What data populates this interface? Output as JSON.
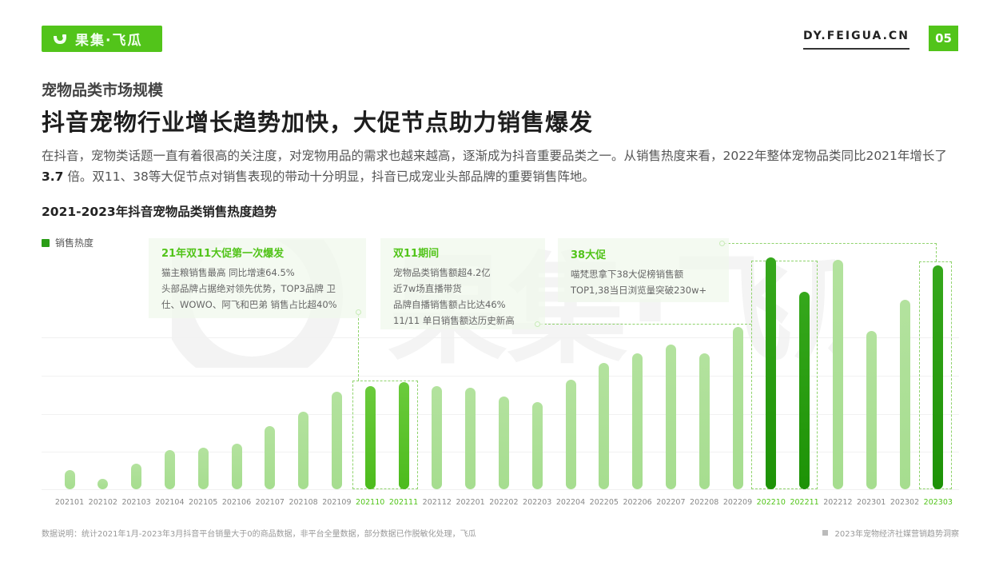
{
  "header": {
    "logo_text": "果集·飞瓜",
    "logo_icon": "guoji-logo-icon",
    "site_url": "DY.FEIGUA.CN",
    "page_number": "05",
    "brand_color": "#52c41a"
  },
  "section_label": "宠物品类市场规模",
  "headline": "抖音宠物行业增长趋势加快，大促节点助力销售爆发",
  "intro": {
    "part1": "在抖音，宠物类话题一直有着很高的关注度，对宠物用品的需求也越来越高，逐渐成为抖音重要品类之一。从销售热度来看，2022年整体宠物品类同比2021年增长了 ",
    "highlight": "3.7",
    "part2": " 倍。双11、38等大促节点对销售表现的带动十分明显，抖音已成宠业头部品牌的重要销售阵地。"
  },
  "chart_title": "2021-2023年抖音宠物品类销售热度趋势",
  "legend": {
    "label": "销售热度",
    "color": "#2a9d16"
  },
  "watermark": "果集·飞瓜",
  "annotations": [
    {
      "title": "21年双11大促第一次爆发",
      "lines": [
        "猫主粮销售最高 同比增速64.5%",
        "头部品牌占据绝对领先优势，TOP3品牌 卫",
        "仕、WOWO、阿飞和巴弟 销售占比超40%"
      ]
    },
    {
      "title": "双11期间",
      "lines": [
        "宠物品类销售额超4.2亿",
        "近7w场直播带货",
        "品牌自播销售额占比达46%",
        "11/11 单日销售额达历史新高"
      ]
    },
    {
      "title": "38大促",
      "lines": [
        "喵梵思拿下38大促榜销售额",
        "TOP1,38当日浏览量突破230w+"
      ]
    }
  ],
  "chart_data": {
    "type": "bar",
    "title": "2021-2023年抖音宠物品类销售热度趋势",
    "xlabel": "",
    "ylabel": "销售热度 (relative, axis unlabeled)",
    "legend": [
      "销售热度"
    ],
    "legend_position": "top-left",
    "grid": true,
    "ylim": [
      0,
      290
    ],
    "categories": [
      "202101",
      "202102",
      "202103",
      "202104",
      "202105",
      "202106",
      "202107",
      "202108",
      "202109",
      "202110",
      "202111",
      "202112",
      "202201",
      "202202",
      "202203",
      "202204",
      "202205",
      "202206",
      "202207",
      "202208",
      "202209",
      "202210",
      "202211",
      "202212",
      "202301",
      "202302",
      "202303"
    ],
    "values": [
      22,
      12,
      30,
      46,
      48,
      53,
      73,
      90,
      113,
      120,
      125,
      120,
      118,
      108,
      101,
      127,
      147,
      158,
      168,
      158,
      189,
      270,
      230,
      267,
      184,
      220,
      260
    ],
    "highlighted": [
      "202110",
      "202111",
      "202210",
      "202211",
      "202303"
    ],
    "colors": {
      "normal": "#a6dd8f",
      "highlight_2021": "#52c41a",
      "highlight_2022_2023": "#1d9206"
    }
  },
  "footnote": "数据说明：统计2021年1月-2023年3月抖音平台销量大于0的商品数据，非平台全量数据，部分数据已作脱敏化处理，飞瓜",
  "footer_right": "2023年宠物经济社媒营销趋势洞察"
}
